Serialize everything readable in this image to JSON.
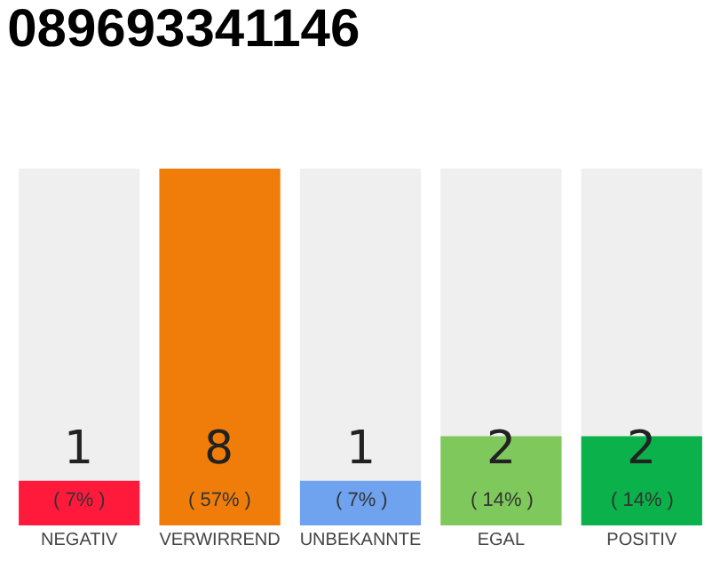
{
  "chart_data": {
    "type": "bar",
    "title": "089693341146",
    "categories": [
      "NEGATIV",
      "VERWIRREND",
      "UNBEKANNTE",
      "EGAL",
      "POSITIV"
    ],
    "values": [
      1,
      8,
      1,
      2,
      2
    ],
    "colors": [
      "#ff1a3c",
      "#f07d0a",
      "#6fa3ef",
      "#7ec85c",
      "#0bb14a"
    ],
    "value_labels": [
      "1\n( 7% )",
      "8\n( 57% )",
      "1\n( 7% )",
      "2\n( 14% )",
      "2\n( 14% )"
    ],
    "tick_labels": "x",
    "grid": false
  }
}
